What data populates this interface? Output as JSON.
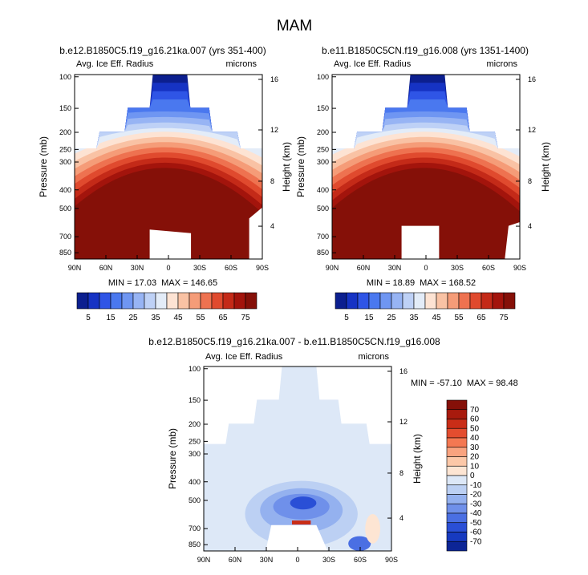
{
  "figure_title": "MAM",
  "chart_data": [
    {
      "type": "contour",
      "id": "panel-1",
      "title": "b.e12.B1850C5.f19_g16.21ka.007 (yrs 351-400)",
      "variable": "Avg. Ice Eff. Radius",
      "units": "microns",
      "xlabel": "",
      "ylabel": "Pressure (mb)",
      "ylabel_right": "Height (km)",
      "x_ticks": [
        "90N",
        "60N",
        "30N",
        "0",
        "30S",
        "60S",
        "90S"
      ],
      "x_tick_values": [
        90,
        60,
        30,
        0,
        -30,
        -60,
        -90
      ],
      "y_ticks": [
        100,
        150,
        200,
        250,
        300,
        400,
        500,
        700,
        850
      ],
      "y_right_ticks": [
        16,
        12,
        8,
        4
      ],
      "ylim": [
        100,
        1000
      ],
      "min_label": "MIN = 17.03",
      "max_label": "MAX = 146.65",
      "min": 17.03,
      "max": 146.65,
      "contour_levels": [
        5,
        10,
        15,
        20,
        25,
        30,
        35,
        40,
        45,
        50,
        55,
        60,
        65,
        70,
        75
      ],
      "colorbar_labels": [
        "5",
        "15",
        "25",
        "35",
        "45",
        "55",
        "65",
        "75"
      ]
    },
    {
      "type": "contour",
      "id": "panel-2",
      "title": "b.e11.B1850C5CN.f19_g16.008 (yrs 1351-1400)",
      "variable": "Avg. Ice Eff. Radius",
      "units": "microns",
      "xlabel": "",
      "ylabel": "Pressure (mb)",
      "ylabel_right": "Height (km)",
      "x_ticks": [
        "90N",
        "60N",
        "30N",
        "0",
        "30S",
        "60S",
        "90S"
      ],
      "x_tick_values": [
        90,
        60,
        30,
        0,
        -30,
        -60,
        -90
      ],
      "y_ticks": [
        100,
        150,
        200,
        250,
        300,
        400,
        500,
        700,
        850
      ],
      "y_right_ticks": [
        16,
        12,
        8,
        4
      ],
      "ylim": [
        100,
        1000
      ],
      "min_label": "MIN = 18.89",
      "max_label": "MAX = 168.52",
      "min": 18.89,
      "max": 168.52,
      "contour_levels": [
        5,
        10,
        15,
        20,
        25,
        30,
        35,
        40,
        45,
        50,
        55,
        60,
        65,
        70,
        75
      ],
      "colorbar_labels": [
        "5",
        "15",
        "25",
        "35",
        "45",
        "55",
        "65",
        "75"
      ]
    },
    {
      "type": "contour",
      "id": "panel-diff",
      "title": "b.e12.B1850C5.f19_g16.21ka.007 - b.e11.B1850C5CN.f19_g16.008",
      "variable": "Avg. Ice Eff. Radius",
      "units": "microns",
      "xlabel": "",
      "ylabel": "Pressure (mb)",
      "ylabel_right": "Height (km)",
      "x_ticks": [
        "90N",
        "60N",
        "30N",
        "0",
        "30S",
        "60S",
        "90S"
      ],
      "x_tick_values": [
        90,
        60,
        30,
        0,
        -30,
        -60,
        -90
      ],
      "y_ticks": [
        100,
        150,
        200,
        250,
        300,
        400,
        500,
        700,
        850
      ],
      "y_right_ticks": [
        16,
        12,
        8,
        4
      ],
      "ylim": [
        100,
        1000
      ],
      "min_label": "MIN = -57.10",
      "max_label": "MAX =  98.48",
      "min": -57.1,
      "max": 98.48,
      "contour_levels": [
        -70,
        -60,
        -50,
        -40,
        -30,
        -20,
        -10,
        0,
        10,
        20,
        30,
        40,
        50,
        60,
        70
      ],
      "colorbar_labels": [
        "70",
        "60",
        "50",
        "40",
        "30",
        "20",
        "10",
        "0",
        "-10",
        "-20",
        "-30",
        "-40",
        "-50",
        "-60",
        "-70"
      ]
    }
  ],
  "colors": {
    "seq_scale": [
      "#0c1f8f",
      "#1633c4",
      "#2f55e6",
      "#4a78ef",
      "#6f96f2",
      "#97b4f4",
      "#bed1f6",
      "#e3ecf8",
      "#fde3d3",
      "#f9c2a4",
      "#f59c78",
      "#ee7250",
      "#e04a2e",
      "#c42a18",
      "#a3140c",
      "#851008"
    ],
    "diff_scale": [
      "#851008",
      "#a81a0d",
      "#c92d17",
      "#e34d2f",
      "#f47852",
      "#f9a37f",
      "#fcc8a8",
      "#fde5d3",
      "#dde8f7",
      "#bcd0f3",
      "#94b1ef",
      "#6f90ea",
      "#4a6fe3",
      "#2a4fd6",
      "#173ac0",
      "#0c2596"
    ]
  }
}
